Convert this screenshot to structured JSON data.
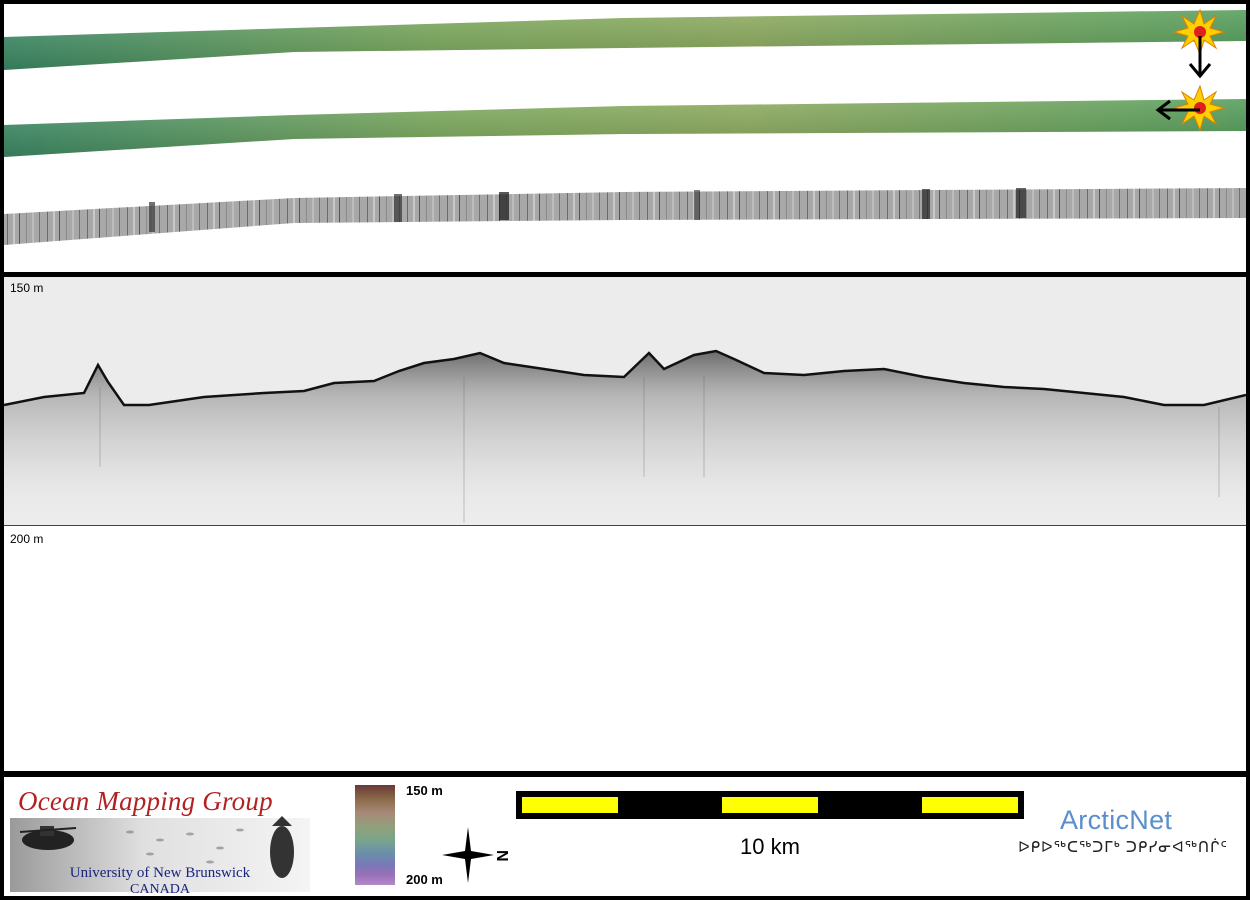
{
  "profile": {
    "top_depth_label": "150 m",
    "bottom_depth_label": "200 m"
  },
  "footer": {
    "ocean_mapping_group": {
      "title": "Ocean Mapping Group",
      "university": "University of New Brunswick",
      "country": "CANADA"
    },
    "colorbar": {
      "max_label": "150 m",
      "min_label": "200 m"
    },
    "compass": {
      "north_letter": "N",
      "icon": "north-arrow-icon"
    },
    "scale": {
      "label": "10 km",
      "segment_colors": [
        "#ffff00",
        "#000000",
        "#ffff00",
        "#000000",
        "#ffff00"
      ]
    },
    "arcticnet": {
      "title": "ArcticNet",
      "subtitle": "ᐅᑭᐅᖅᑕᖅᑐᒥᒃ ᑐᑭᓯᓂᐊᖅᑎᒌᑦ"
    }
  },
  "colors": {
    "frame": "#000000",
    "bathymetry_green": "#5f9a4a",
    "backscatter_gray": "#9a9a9a",
    "echo_background": "#ececec"
  },
  "icons": [
    "explosion-icon",
    "down-arrow-icon",
    "left-arrow-icon"
  ]
}
